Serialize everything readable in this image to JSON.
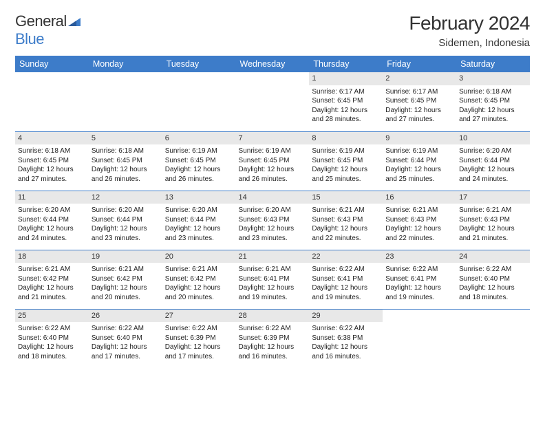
{
  "logo": {
    "word1": "General",
    "word2": "Blue"
  },
  "title": "February 2024",
  "location": "Sidemen, Indonesia",
  "colors": {
    "header_bg": "#3d7cc9",
    "daynum_bg": "#e8e8e8",
    "text": "#333333"
  },
  "day_names": [
    "Sunday",
    "Monday",
    "Tuesday",
    "Wednesday",
    "Thursday",
    "Friday",
    "Saturday"
  ],
  "weeks": [
    [
      {
        "n": "",
        "sr": "",
        "ss": "",
        "dl": ""
      },
      {
        "n": "",
        "sr": "",
        "ss": "",
        "dl": ""
      },
      {
        "n": "",
        "sr": "",
        "ss": "",
        "dl": ""
      },
      {
        "n": "",
        "sr": "",
        "ss": "",
        "dl": ""
      },
      {
        "n": "1",
        "sr": "Sunrise: 6:17 AM",
        "ss": "Sunset: 6:45 PM",
        "dl": "Daylight: 12 hours and 28 minutes."
      },
      {
        "n": "2",
        "sr": "Sunrise: 6:17 AM",
        "ss": "Sunset: 6:45 PM",
        "dl": "Daylight: 12 hours and 27 minutes."
      },
      {
        "n": "3",
        "sr": "Sunrise: 6:18 AM",
        "ss": "Sunset: 6:45 PM",
        "dl": "Daylight: 12 hours and 27 minutes."
      }
    ],
    [
      {
        "n": "4",
        "sr": "Sunrise: 6:18 AM",
        "ss": "Sunset: 6:45 PM",
        "dl": "Daylight: 12 hours and 27 minutes."
      },
      {
        "n": "5",
        "sr": "Sunrise: 6:18 AM",
        "ss": "Sunset: 6:45 PM",
        "dl": "Daylight: 12 hours and 26 minutes."
      },
      {
        "n": "6",
        "sr": "Sunrise: 6:19 AM",
        "ss": "Sunset: 6:45 PM",
        "dl": "Daylight: 12 hours and 26 minutes."
      },
      {
        "n": "7",
        "sr": "Sunrise: 6:19 AM",
        "ss": "Sunset: 6:45 PM",
        "dl": "Daylight: 12 hours and 26 minutes."
      },
      {
        "n": "8",
        "sr": "Sunrise: 6:19 AM",
        "ss": "Sunset: 6:45 PM",
        "dl": "Daylight: 12 hours and 25 minutes."
      },
      {
        "n": "9",
        "sr": "Sunrise: 6:19 AM",
        "ss": "Sunset: 6:44 PM",
        "dl": "Daylight: 12 hours and 25 minutes."
      },
      {
        "n": "10",
        "sr": "Sunrise: 6:20 AM",
        "ss": "Sunset: 6:44 PM",
        "dl": "Daylight: 12 hours and 24 minutes."
      }
    ],
    [
      {
        "n": "11",
        "sr": "Sunrise: 6:20 AM",
        "ss": "Sunset: 6:44 PM",
        "dl": "Daylight: 12 hours and 24 minutes."
      },
      {
        "n": "12",
        "sr": "Sunrise: 6:20 AM",
        "ss": "Sunset: 6:44 PM",
        "dl": "Daylight: 12 hours and 23 minutes."
      },
      {
        "n": "13",
        "sr": "Sunrise: 6:20 AM",
        "ss": "Sunset: 6:44 PM",
        "dl": "Daylight: 12 hours and 23 minutes."
      },
      {
        "n": "14",
        "sr": "Sunrise: 6:20 AM",
        "ss": "Sunset: 6:43 PM",
        "dl": "Daylight: 12 hours and 23 minutes."
      },
      {
        "n": "15",
        "sr": "Sunrise: 6:21 AM",
        "ss": "Sunset: 6:43 PM",
        "dl": "Daylight: 12 hours and 22 minutes."
      },
      {
        "n": "16",
        "sr": "Sunrise: 6:21 AM",
        "ss": "Sunset: 6:43 PM",
        "dl": "Daylight: 12 hours and 22 minutes."
      },
      {
        "n": "17",
        "sr": "Sunrise: 6:21 AM",
        "ss": "Sunset: 6:43 PM",
        "dl": "Daylight: 12 hours and 21 minutes."
      }
    ],
    [
      {
        "n": "18",
        "sr": "Sunrise: 6:21 AM",
        "ss": "Sunset: 6:42 PM",
        "dl": "Daylight: 12 hours and 21 minutes."
      },
      {
        "n": "19",
        "sr": "Sunrise: 6:21 AM",
        "ss": "Sunset: 6:42 PM",
        "dl": "Daylight: 12 hours and 20 minutes."
      },
      {
        "n": "20",
        "sr": "Sunrise: 6:21 AM",
        "ss": "Sunset: 6:42 PM",
        "dl": "Daylight: 12 hours and 20 minutes."
      },
      {
        "n": "21",
        "sr": "Sunrise: 6:21 AM",
        "ss": "Sunset: 6:41 PM",
        "dl": "Daylight: 12 hours and 19 minutes."
      },
      {
        "n": "22",
        "sr": "Sunrise: 6:22 AM",
        "ss": "Sunset: 6:41 PM",
        "dl": "Daylight: 12 hours and 19 minutes."
      },
      {
        "n": "23",
        "sr": "Sunrise: 6:22 AM",
        "ss": "Sunset: 6:41 PM",
        "dl": "Daylight: 12 hours and 19 minutes."
      },
      {
        "n": "24",
        "sr": "Sunrise: 6:22 AM",
        "ss": "Sunset: 6:40 PM",
        "dl": "Daylight: 12 hours and 18 minutes."
      }
    ],
    [
      {
        "n": "25",
        "sr": "Sunrise: 6:22 AM",
        "ss": "Sunset: 6:40 PM",
        "dl": "Daylight: 12 hours and 18 minutes."
      },
      {
        "n": "26",
        "sr": "Sunrise: 6:22 AM",
        "ss": "Sunset: 6:40 PM",
        "dl": "Daylight: 12 hours and 17 minutes."
      },
      {
        "n": "27",
        "sr": "Sunrise: 6:22 AM",
        "ss": "Sunset: 6:39 PM",
        "dl": "Daylight: 12 hours and 17 minutes."
      },
      {
        "n": "28",
        "sr": "Sunrise: 6:22 AM",
        "ss": "Sunset: 6:39 PM",
        "dl": "Daylight: 12 hours and 16 minutes."
      },
      {
        "n": "29",
        "sr": "Sunrise: 6:22 AM",
        "ss": "Sunset: 6:38 PM",
        "dl": "Daylight: 12 hours and 16 minutes."
      },
      {
        "n": "",
        "sr": "",
        "ss": "",
        "dl": ""
      },
      {
        "n": "",
        "sr": "",
        "ss": "",
        "dl": ""
      }
    ]
  ]
}
